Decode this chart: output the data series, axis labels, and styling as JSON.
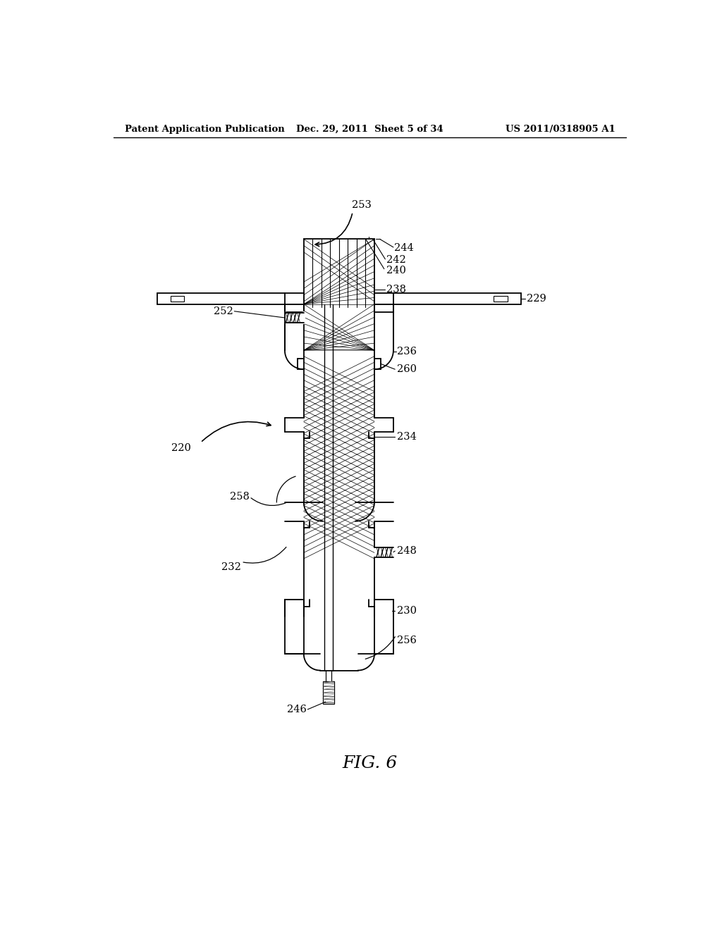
{
  "header_left": "Patent Application Publication",
  "header_mid": "Dec. 29, 2011  Sheet 5 of 34",
  "header_right": "US 2011/0318905 A1",
  "figure_label": "FIG. 6",
  "bg_color": "#ffffff",
  "line_color": "#000000",
  "lw": 1.3
}
